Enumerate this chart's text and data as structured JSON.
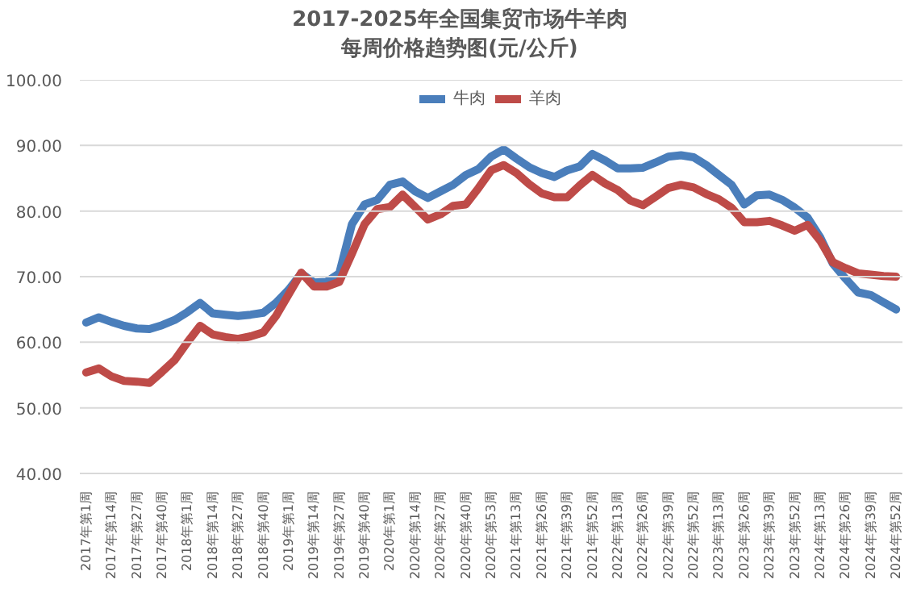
{
  "chart_data": {
    "type": "line",
    "title": "2017-2025年全国集贸市场牛羊肉每周价格趋势图(元/公斤)",
    "categories": [
      "2017年第1周",
      null,
      "2017年第14周",
      null,
      "2017年第27周",
      null,
      "2017年第40周",
      null,
      "2018年第1周",
      null,
      "2018年第14周",
      null,
      "2018年第27周",
      null,
      "2018年第40周",
      null,
      "2019年第1周",
      null,
      "2019年第14周",
      null,
      "2019年第27周",
      null,
      "2019年第40周",
      null,
      "2020年第1周",
      null,
      "2020年第14周",
      null,
      "2020年第27周",
      null,
      "2020年第40周",
      null,
      "2020年第53周",
      null,
      "2021年第13周",
      null,
      "2021年第26周",
      null,
      "2021年第39周",
      null,
      "2021年第52周",
      null,
      "2022年第13周",
      null,
      "2022年第26周",
      null,
      "2022年第39周",
      null,
      "2022年第52周",
      null,
      "2023年第13周",
      null,
      "2023年第26周",
      null,
      "2023年第39周",
      null,
      "2023年第52周",
      null,
      "2024年第13周",
      null,
      "2024年第26周",
      null,
      "2024年第39周",
      null,
      "2024年第52周"
    ],
    "series": [
      {
        "name": "牛肉",
        "color": "#4a7ebb",
        "values": [
          63,
          63.8,
          63.1,
          62.5,
          62.1,
          62,
          62.6,
          63.4,
          64.6,
          66,
          64.4,
          64.2,
          64,
          64.2,
          64.5,
          66,
          68,
          70.5,
          69.1,
          69.2,
          70.5,
          78,
          81,
          81.7,
          84,
          84.5,
          83,
          82,
          83,
          84,
          85.5,
          86.4,
          88.3,
          89.4,
          88,
          86.7,
          85.8,
          85.2,
          86.2,
          86.8,
          88.7,
          87.7,
          86.5,
          86.5,
          86.6,
          87.4,
          88.3,
          88.5,
          88.2,
          87,
          85.5,
          84,
          81,
          82.4,
          82.5,
          81.7,
          80.5,
          79,
          76,
          72,
          69.7,
          67.6,
          67.2,
          66.1,
          65
        ]
      },
      {
        "name": "羊肉",
        "color": "#be4b48",
        "values": [
          55.4,
          56,
          54.8,
          54.1,
          54,
          53.8,
          55.5,
          57.3,
          60,
          62.5,
          61.2,
          60.8,
          60.5,
          60.9,
          61.5,
          64,
          67.3,
          70.6,
          68.5,
          68.5,
          69.2,
          73.5,
          78,
          80.3,
          80.6,
          82.5,
          80.6,
          78.7,
          79.5,
          80.8,
          81,
          83.5,
          86.2,
          87,
          85.8,
          84.1,
          82.7,
          82.1,
          82.1,
          83.9,
          85.5,
          84.2,
          83.2,
          81.6,
          80.9,
          82.2,
          83.5,
          84,
          83.6,
          82.6,
          81.8,
          80.5,
          78.3,
          78.3,
          78.5,
          77.8,
          77,
          77.9,
          75.5,
          72.2,
          71.3,
          70.5,
          70.3,
          70.1,
          70
        ]
      }
    ],
    "ylim": [
      40,
      100
    ],
    "yticks": [
      {
        "value": 40,
        "label": "40.00"
      },
      {
        "value": 50,
        "label": "50.00"
      },
      {
        "value": 60,
        "label": "60.00"
      },
      {
        "value": 70,
        "label": "70.00"
      },
      {
        "value": 80,
        "label": "80.00"
      },
      {
        "value": 90,
        "label": "90.00"
      },
      {
        "value": 100,
        "label": "100.00"
      }
    ],
    "grid": "y",
    "legend": "top",
    "marker": "none",
    "line_style": "solid"
  }
}
